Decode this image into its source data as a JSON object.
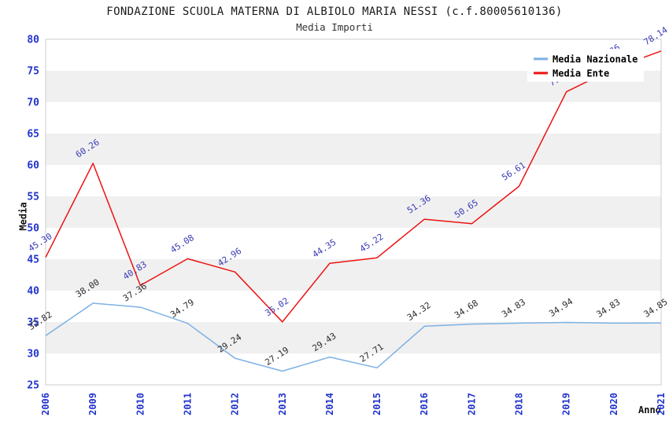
{
  "chart_data": {
    "type": "line",
    "title": "FONDAZIONE SCUOLA MATERNA DI ALBIOLO MARIA NESSI (c.f.80005610136)",
    "subtitle": "Media Importi",
    "xlabel": "Anno",
    "ylabel": "Media",
    "ylim": [
      25,
      80
    ],
    "ytick_step": 5,
    "grid": "horizontal-bands",
    "band_colors": [
      "#ffffff",
      "#f0f0f0"
    ],
    "plot_border_color": "#cccccc",
    "axis_tick_color": "#2233cc",
    "categories": [
      "2006",
      "2009",
      "2010",
      "2011",
      "2012",
      "2013",
      "2014",
      "2015",
      "2016",
      "2017",
      "2018",
      "2019",
      "2020",
      "2021"
    ],
    "series": [
      {
        "name": "Media Nazionale",
        "color": "#7db1e3",
        "label_color": "#2a2a2a",
        "values": [
          32.82,
          38.0,
          37.36,
          34.79,
          29.24,
          27.19,
          29.43,
          27.71,
          34.32,
          34.68,
          34.83,
          34.94,
          34.83,
          34.85
        ],
        "labels": [
          "32.82",
          "38.00",
          "37.36",
          "34.79",
          "29.24",
          "27.19",
          "29.43",
          "27.71",
          "34.32",
          "34.68",
          "34.83",
          "34.94",
          "34.83",
          "34.85"
        ]
      },
      {
        "name": "Media Ente",
        "color": "#ee1111",
        "label_color": "#3a3ab8",
        "values": [
          45.3,
          60.26,
          40.83,
          45.08,
          42.96,
          35.02,
          44.35,
          45.22,
          51.36,
          50.65,
          56.61,
          71.65,
          75.36,
          78.14
        ],
        "labels": [
          "45.30",
          "60.26",
          "40.83",
          "45.08",
          "42.96",
          "35.02",
          "44.35",
          "45.22",
          "51.36",
          "50.65",
          "56.61",
          "71.65",
          "75.36",
          "78.14"
        ]
      }
    ],
    "legend": {
      "position": "top-right",
      "entries": [
        "Media Nazionale",
        "Media Ente"
      ]
    }
  }
}
